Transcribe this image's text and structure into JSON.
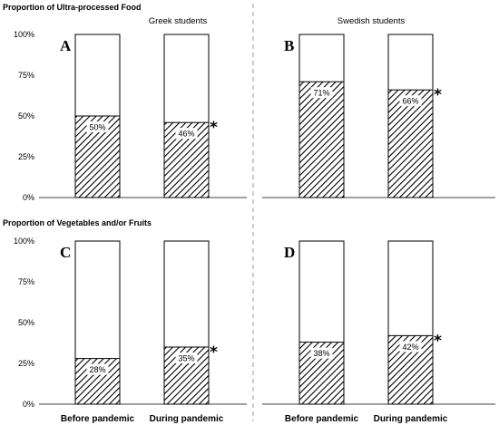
{
  "section_titles": [
    "Proportion of Ultra-processed Food",
    "Proportion of Vegetables and/or Fruits"
  ],
  "group_titles": [
    "Greek students",
    "Swedish students"
  ],
  "colors": {
    "hatch": "#000000",
    "bar_border": "#000000",
    "divider": "#999999"
  },
  "chart_data": [
    {
      "type": "bar",
      "panel": "A",
      "group": "Greek students",
      "metric": "Proportion of Ultra-processed Food",
      "categories": [
        "Before pandemic",
        "During pandemic"
      ],
      "values": [
        50,
        46
      ],
      "value_labels": [
        "50%",
        "46%"
      ],
      "significant": [
        false,
        true
      ],
      "ylim": [
        0,
        100
      ],
      "yticks": [
        "0%",
        "25%",
        "50%",
        "75%",
        "100%"
      ]
    },
    {
      "type": "bar",
      "panel": "B",
      "group": "Swedish students",
      "metric": "Proportion of Ultra-processed Food",
      "categories": [
        "Before pandemic",
        "During pandemic"
      ],
      "values": [
        71,
        66
      ],
      "value_labels": [
        "71%",
        "66%"
      ],
      "significant": [
        false,
        true
      ],
      "ylim": [
        0,
        100
      ],
      "yticks": [
        "0%",
        "25%",
        "50%",
        "75%",
        "100%"
      ]
    },
    {
      "type": "bar",
      "panel": "C",
      "group": "Greek students",
      "metric": "Proportion of Vegetables and/or Fruits",
      "categories": [
        "Before pandemic",
        "During pandemic"
      ],
      "values": [
        28,
        35
      ],
      "value_labels": [
        "28%",
        "35%"
      ],
      "significant": [
        false,
        true
      ],
      "ylim": [
        0,
        100
      ],
      "yticks": [
        "0%",
        "25%",
        "50%",
        "75%",
        "100%"
      ]
    },
    {
      "type": "bar",
      "panel": "D",
      "group": "Swedish students",
      "metric": "Proportion of Vegetables and/or Fruits",
      "categories": [
        "Before pandemic",
        "During pandemic"
      ],
      "values": [
        38,
        42
      ],
      "value_labels": [
        "38%",
        "42%"
      ],
      "significant": [
        false,
        true
      ],
      "ylim": [
        0,
        100
      ],
      "yticks": [
        "0%",
        "25%",
        "50%",
        "75%",
        "100%"
      ]
    }
  ],
  "significance_marker": "*"
}
